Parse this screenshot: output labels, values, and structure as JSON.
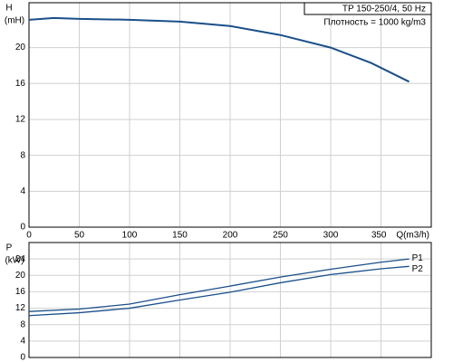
{
  "chart_data": [
    {
      "type": "line",
      "title": "TP 150-250/4, 50 Hz",
      "subtitle": "Плотность = 1000 kg/m3",
      "y_label": "H",
      "y_unit": "(mH)",
      "x_label": "Q(m3/h)",
      "xlim": [
        0,
        400
      ],
      "xticks": [
        0,
        50,
        100,
        150,
        200,
        250,
        300,
        350
      ],
      "ylim": [
        0,
        25
      ],
      "yticks": [
        0,
        4,
        8,
        12,
        16,
        20
      ],
      "grid": true,
      "series": [
        {
          "color": "#1a4f8a",
          "x": [
            0,
            25,
            50,
            100,
            150,
            200,
            250,
            300,
            340,
            378
          ],
          "values": [
            23.1,
            23.3,
            23.2,
            23.1,
            22.9,
            22.4,
            21.4,
            20.0,
            18.3,
            16.2
          ]
        }
      ]
    },
    {
      "type": "line",
      "y_label": "P",
      "y_unit": "(kW)",
      "xlim": [
        0,
        400
      ],
      "xticks": [
        0,
        50,
        100,
        150,
        200,
        250,
        300,
        350
      ],
      "ylim": [
        0,
        28
      ],
      "yticks": [
        0,
        4,
        8,
        12,
        16,
        20,
        24
      ],
      "grid": true,
      "series": [
        {
          "name": "P1",
          "color": "#1a4f8a",
          "x": [
            0,
            50,
            100,
            150,
            200,
            250,
            300,
            350,
            378
          ],
          "values": [
            11.2,
            11.8,
            13.0,
            15.3,
            17.4,
            19.6,
            21.5,
            23.2,
            24.0
          ]
        },
        {
          "name": "P2",
          "color": "#1a4f8a",
          "x": [
            0,
            50,
            100,
            150,
            200,
            250,
            300,
            350,
            378
          ],
          "values": [
            10.2,
            10.9,
            12.0,
            14.0,
            15.9,
            18.2,
            20.2,
            21.6,
            22.2
          ]
        }
      ]
    }
  ]
}
